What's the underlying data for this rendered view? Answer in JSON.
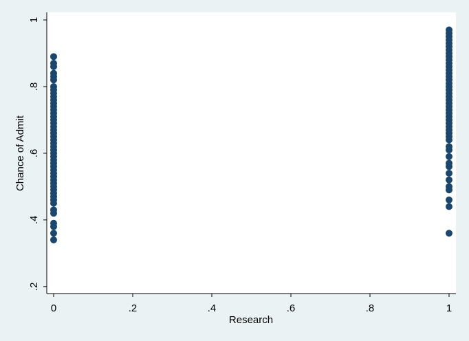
{
  "chart_data": {
    "type": "scatter",
    "x_label": "Research",
    "y_label": "Chance of Admit",
    "xlim": [
      -0.0174,
      1.0174
    ],
    "ylim": [
      0.179,
      1.0227
    ],
    "xticks": [
      0,
      {
        "value": 0.2,
        "label": ".2"
      },
      {
        "value": 0.4,
        "label": ".4"
      },
      {
        "value": 0.6,
        "label": ".6"
      },
      {
        "value": 0.8,
        "label": ".8"
      },
      1
    ],
    "yticks": [
      {
        "value": 0.2,
        "label": ".2"
      },
      {
        "value": 0.4,
        "label": ".4"
      },
      {
        "value": 0.6,
        "label": ".6"
      },
      {
        "value": 0.8,
        "label": ".8"
      },
      1
    ],
    "grid": false,
    "series": [
      {
        "color": "#1a476f",
        "x": [
          0,
          0,
          0,
          0,
          0,
          0,
          0,
          0,
          0,
          0,
          0,
          0,
          0,
          0,
          0,
          0,
          0,
          0,
          0,
          0,
          0,
          0,
          0,
          0,
          0,
          0,
          0,
          0,
          0,
          0,
          0,
          0,
          0,
          0,
          0,
          0,
          0,
          0,
          0,
          0,
          0,
          0,
          0,
          0,
          0,
          0,
          0,
          0,
          1,
          1,
          1,
          1,
          1,
          1,
          1,
          1,
          1,
          1,
          1,
          1,
          1,
          1,
          1,
          1,
          1,
          1,
          1,
          1,
          1,
          1,
          1,
          1,
          1,
          1,
          1,
          1,
          1,
          1,
          1,
          1,
          1,
          1,
          1,
          1,
          1,
          1,
          1,
          1,
          1,
          1,
          1,
          1,
          1,
          1
        ],
        "y": [
          0.34,
          0.36,
          0.38,
          0.39,
          0.42,
          0.43,
          0.45,
          0.46,
          0.47,
          0.48,
          0.49,
          0.5,
          0.51,
          0.52,
          0.53,
          0.54,
          0.55,
          0.56,
          0.57,
          0.58,
          0.59,
          0.6,
          0.61,
          0.62,
          0.63,
          0.64,
          0.65,
          0.66,
          0.67,
          0.68,
          0.69,
          0.7,
          0.71,
          0.72,
          0.73,
          0.74,
          0.75,
          0.76,
          0.77,
          0.78,
          0.79,
          0.8,
          0.82,
          0.83,
          0.84,
          0.86,
          0.87,
          0.89,
          0.36,
          0.44,
          0.46,
          0.49,
          0.5,
          0.52,
          0.54,
          0.56,
          0.57,
          0.59,
          0.61,
          0.62,
          0.64,
          0.65,
          0.66,
          0.67,
          0.68,
          0.69,
          0.7,
          0.71,
          0.72,
          0.73,
          0.74,
          0.75,
          0.76,
          0.77,
          0.78,
          0.79,
          0.8,
          0.81,
          0.82,
          0.83,
          0.84,
          0.85,
          0.86,
          0.87,
          0.88,
          0.89,
          0.9,
          0.91,
          0.92,
          0.93,
          0.94,
          0.95,
          0.96,
          0.97
        ]
      }
    ]
  }
}
